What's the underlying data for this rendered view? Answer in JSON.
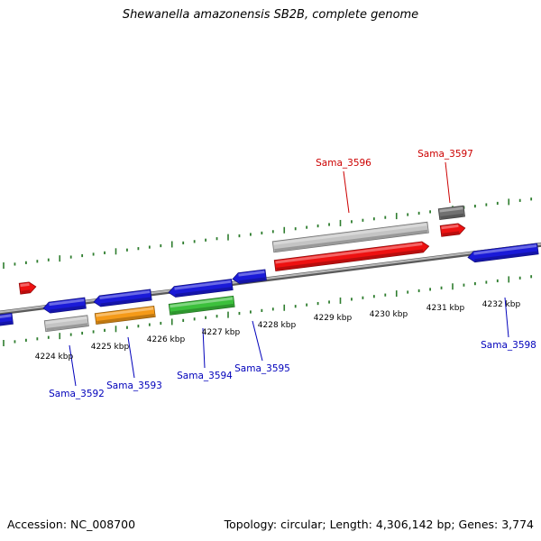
{
  "title": "Shewanella amazonensis SB2B, complete genome",
  "footer": {
    "accession": "Accession: NC_008700",
    "topology": "Topology: circular; Length: 4,306,142 bp; Genes: 3,774"
  },
  "colors": {
    "backbone": "#8a8a8a",
    "tick": "#2e7d2e",
    "label_forward": "#cc0000",
    "label_reverse": "#0000bb",
    "gene_blue": "#1a1ad8",
    "gene_red": "#ee1111",
    "gene_orange": "#f59a18",
    "gene_green": "#3cc03c",
    "gene_light_gray": "#c4c4c4",
    "gene_dark_gray": "#707070"
  },
  "scale_labels": [
    "4224 kbp",
    "4225 kbp",
    "4226 kbp",
    "4227 kbp",
    "4228 kbp",
    "4229 kbp",
    "4230 kbp",
    "4231 kbp",
    "4232 kbp"
  ],
  "gene_labels": [
    {
      "name": "Sama_3592",
      "strand": "reverse"
    },
    {
      "name": "Sama_3593",
      "strand": "reverse"
    },
    {
      "name": "Sama_3594",
      "strand": "reverse"
    },
    {
      "name": "Sama_3595",
      "strand": "reverse"
    },
    {
      "name": "Sama_3596",
      "strand": "forward"
    },
    {
      "name": "Sama_3597",
      "strand": "forward"
    },
    {
      "name": "Sama_3598",
      "strand": "reverse"
    }
  ]
}
